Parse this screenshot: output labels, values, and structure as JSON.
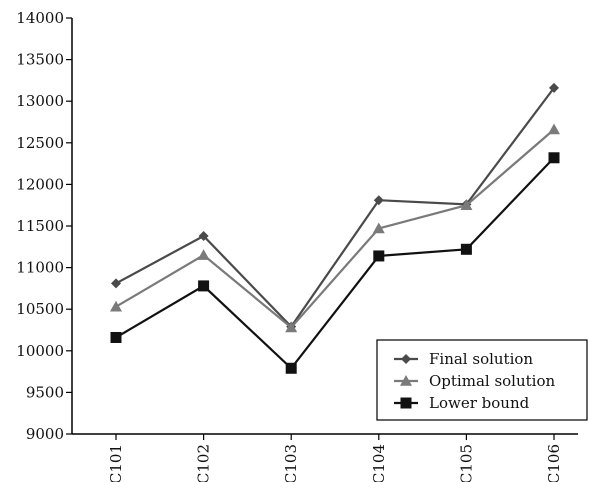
{
  "chart_data": {
    "type": "line",
    "categories": [
      "C101",
      "C102",
      "C103",
      "C104",
      "C105",
      "C106"
    ],
    "series": [
      {
        "name": "Final solution",
        "marker": "diamond",
        "color": "#4a4a4a",
        "values": [
          10810,
          11380,
          10290,
          11810,
          11760,
          13160
        ]
      },
      {
        "name": "Optimal solution",
        "marker": "triangle",
        "color": "#7a7a7a",
        "values": [
          10530,
          11150,
          10280,
          11470,
          11750,
          12660
        ]
      },
      {
        "name": "Lower bound",
        "marker": "square",
        "color": "#111111",
        "values": [
          10160,
          10780,
          9790,
          11140,
          11220,
          12320
        ]
      }
    ],
    "ylim": [
      9000,
      14000
    ],
    "yticks": [
      "9000",
      "9500",
      "10000",
      "10500",
      "11000",
      "11500",
      "12000",
      "12500",
      "13000",
      "13500",
      "14000"
    ],
    "xlabel": "",
    "ylabel": "",
    "title": "",
    "grid": false,
    "legend_position": "bottom-right"
  }
}
